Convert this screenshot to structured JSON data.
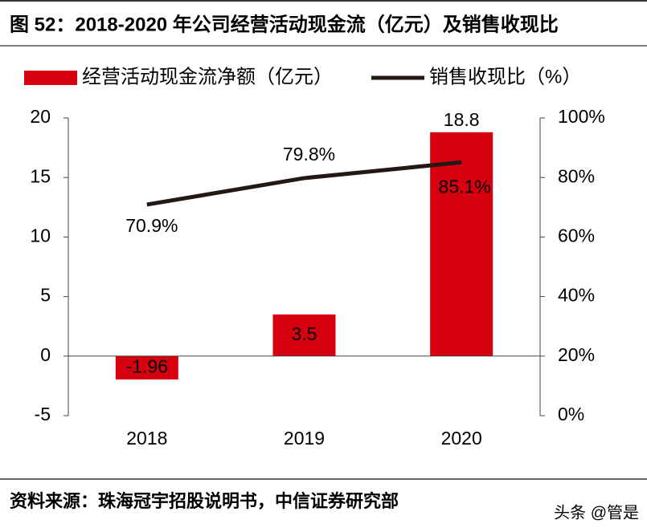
{
  "chart_data": {
    "type": "bar_line",
    "title": "图 52：2018-2020 年公司经营活动现金流（亿元）及销售收现比",
    "source": "资料来源：珠海冠宇招股说明书，中信证券研究部",
    "watermark": "头条 @管是",
    "categories": [
      "2018",
      "2019",
      "2020"
    ],
    "series": [
      {
        "name": "经营活动现金流净额（亿元）",
        "type": "bar",
        "color": "#d7000f",
        "values": [
          -1.96,
          3.5,
          18.8
        ]
      },
      {
        "name": "销售收现比（%）",
        "type": "line",
        "axis": "y2",
        "color": "#231815",
        "values": [
          70.9,
          79.8,
          85.1
        ],
        "value_labels": [
          "70.9%",
          "79.8%",
          "85.1%"
        ]
      }
    ],
    "ylim": [
      -5,
      20
    ],
    "yticks": [
      -5,
      0,
      5,
      10,
      15,
      20
    ],
    "y2lim": [
      0,
      100
    ],
    "y2ticks": [
      {
        "value": 0,
        "label": "0%"
      },
      {
        "value": 20,
        "label": "20%"
      },
      {
        "value": 40,
        "label": "40%"
      },
      {
        "value": 60,
        "label": "60%"
      },
      {
        "value": 80,
        "label": "80%"
      },
      {
        "value": 100,
        "label": "100%"
      }
    ]
  }
}
